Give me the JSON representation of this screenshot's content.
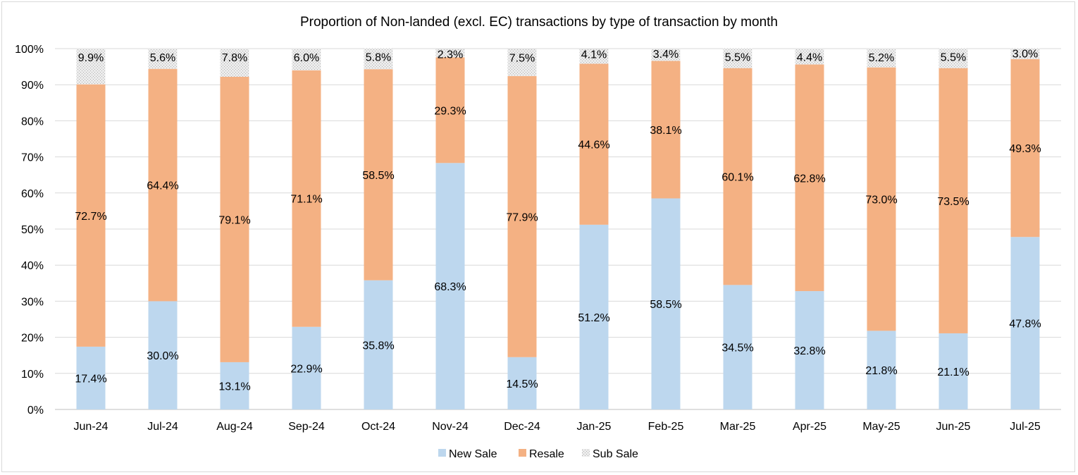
{
  "chart_data": {
    "type": "bar",
    "stacked": true,
    "title": "Proportion of Non-landed (excl. EC) transactions by type of transaction by month",
    "xlabel": "",
    "ylabel": "",
    "ylim": [
      0,
      100
    ],
    "y_ticks": [
      "0%",
      "10%",
      "20%",
      "30%",
      "40%",
      "50%",
      "60%",
      "70%",
      "80%",
      "90%",
      "100%"
    ],
    "grid": true,
    "legend_position": "bottom",
    "categories": [
      "Jun-24",
      "Jul-24",
      "Aug-24",
      "Sep-24",
      "Oct-24",
      "Nov-24",
      "Dec-24",
      "Jan-25",
      "Feb-25",
      "Mar-25",
      "Apr-25",
      "May-25",
      "Jun-25",
      "Jul-25"
    ],
    "series": [
      {
        "name": "New Sale",
        "color": "#bdd7ee",
        "values": [
          17.4,
          30.0,
          13.1,
          22.9,
          35.8,
          68.3,
          14.5,
          51.2,
          58.5,
          34.5,
          32.8,
          21.8,
          21.1,
          47.8
        ],
        "labels": [
          "17.4%",
          "30.0%",
          "13.1%",
          "22.9%",
          "35.8%",
          "68.3%",
          "14.5%",
          "51.2%",
          "58.5%",
          "34.5%",
          "32.8%",
          "21.8%",
          "21.1%",
          "47.8%"
        ]
      },
      {
        "name": "Resale",
        "color": "#f4b183",
        "values": [
          72.7,
          64.4,
          79.1,
          71.1,
          58.5,
          29.3,
          77.9,
          44.6,
          38.1,
          60.1,
          62.8,
          73.0,
          73.5,
          49.3
        ],
        "labels": [
          "72.7%",
          "64.4%",
          "79.1%",
          "71.1%",
          "58.5%",
          "29.3%",
          "77.9%",
          "44.6%",
          "38.1%",
          "60.1%",
          "62.8%",
          "73.0%",
          "73.5%",
          "49.3%"
        ]
      },
      {
        "name": "Sub Sale",
        "color": "#d9d9d9",
        "values": [
          9.9,
          5.6,
          7.8,
          6.0,
          5.8,
          2.3,
          7.5,
          4.1,
          3.4,
          5.5,
          4.4,
          5.2,
          5.5,
          3.0
        ],
        "labels": [
          "9.9%",
          "5.6%",
          "7.8%",
          "6.0%",
          "5.8%",
          "2.3%",
          "7.5%",
          "4.1%",
          "3.4%",
          "5.5%",
          "4.4%",
          "5.2%",
          "5.5%",
          "3.0%"
        ]
      }
    ]
  }
}
